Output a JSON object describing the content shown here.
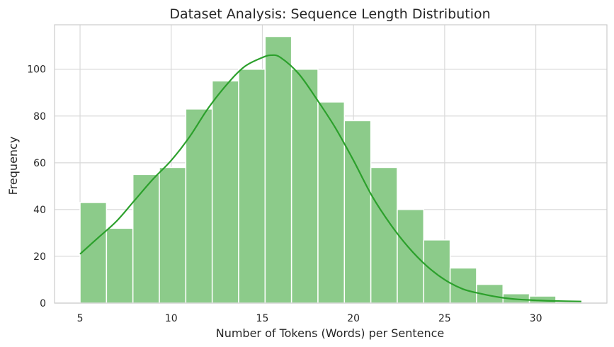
{
  "chart_data": {
    "type": "histogram",
    "title": "Dataset Analysis: Sequence Length Distribution",
    "xlabel": "Number of Tokens (Words) per Sentence",
    "ylabel": "Frequency",
    "xlim": [
      3.6,
      33.9
    ],
    "ylim": [
      0,
      119
    ],
    "xticks": [
      5,
      10,
      15,
      20,
      25,
      30
    ],
    "yticks": [
      0,
      20,
      40,
      60,
      80,
      100
    ],
    "grid": true,
    "bar_color": "#8ccb8a",
    "bar_edge_color": "#ffffff",
    "kde_color": "#2ca02c",
    "bins": [
      {
        "x0": 5.0,
        "x1": 6.45,
        "value": 43
      },
      {
        "x0": 6.45,
        "x1": 7.9,
        "value": 32
      },
      {
        "x0": 7.9,
        "x1": 9.35,
        "value": 55
      },
      {
        "x0": 9.35,
        "x1": 10.8,
        "value": 58
      },
      {
        "x0": 10.8,
        "x1": 12.25,
        "value": 83
      },
      {
        "x0": 12.25,
        "x1": 13.7,
        "value": 95
      },
      {
        "x0": 13.7,
        "x1": 15.15,
        "value": 100
      },
      {
        "x0": 15.15,
        "x1": 16.6,
        "value": 114
      },
      {
        "x0": 16.6,
        "x1": 18.05,
        "value": 100
      },
      {
        "x0": 18.05,
        "x1": 19.5,
        "value": 86
      },
      {
        "x0": 19.5,
        "x1": 20.95,
        "value": 78
      },
      {
        "x0": 20.95,
        "x1": 22.4,
        "value": 58
      },
      {
        "x0": 22.4,
        "x1": 23.85,
        "value": 40
      },
      {
        "x0": 23.85,
        "x1": 25.3,
        "value": 27
      },
      {
        "x0": 25.3,
        "x1": 26.75,
        "value": 15
      },
      {
        "x0": 26.75,
        "x1": 28.2,
        "value": 8
      },
      {
        "x0": 28.2,
        "x1": 29.65,
        "value": 4
      },
      {
        "x0": 29.65,
        "x1": 31.1,
        "value": 3
      }
    ],
    "kde": {
      "x": [
        5,
        6,
        7,
        8,
        9,
        10,
        11,
        12,
        13,
        14,
        15,
        15.5,
        16,
        17,
        18,
        19,
        20,
        21,
        22,
        23,
        24,
        25,
        26,
        27,
        28,
        29,
        30,
        31,
        32.5
      ],
      "y": [
        21,
        28,
        35,
        44,
        53,
        61,
        71,
        83,
        93,
        101,
        105,
        106,
        105,
        98,
        87,
        75,
        61,
        46,
        34,
        24,
        16,
        10,
        6,
        4,
        2.5,
        1.6,
        1.2,
        0.9,
        0.7
      ]
    }
  }
}
